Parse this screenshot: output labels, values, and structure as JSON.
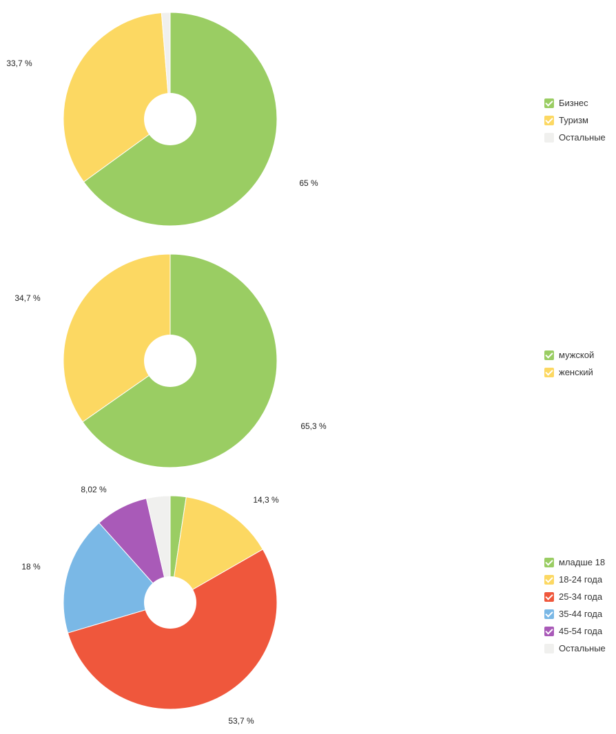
{
  "chart_data": [
    {
      "type": "pie",
      "categories": [
        "Бизнес",
        "Туризм",
        "Остальные"
      ],
      "values": [
        65,
        33.7,
        1.3
      ],
      "colors": [
        "#9ACD63",
        "#FCD862",
        "#F0F0EE"
      ],
      "legend_checked": [
        true,
        true,
        false
      ],
      "data_labels": [
        {
          "text": "65 %",
          "slice": 0
        },
        {
          "text": "33,7 %",
          "slice": 1
        }
      ],
      "legend_position": "right",
      "donut": true
    },
    {
      "type": "pie",
      "categories": [
        "мужской",
        "женский"
      ],
      "values": [
        65.3,
        34.7
      ],
      "colors": [
        "#9ACD63",
        "#FCD862"
      ],
      "legend_checked": [
        true,
        true
      ],
      "data_labels": [
        {
          "text": "65,3 %",
          "slice": 0
        },
        {
          "text": "34,7 %",
          "slice": 1
        }
      ],
      "legend_position": "right",
      "donut": true
    },
    {
      "type": "pie",
      "categories": [
        "младше 18",
        "18-24 года",
        "25-34 года",
        "35-44 года",
        "45-54 года",
        "Остальные"
      ],
      "values": [
        2.4,
        14.3,
        53.7,
        18,
        8.02,
        3.58
      ],
      "colors": [
        "#9ACD63",
        "#FCD862",
        "#EF573C",
        "#7AB8E6",
        "#A95AB8",
        "#F0F0EE"
      ],
      "legend_checked": [
        true,
        true,
        true,
        true,
        true,
        false
      ],
      "data_labels": [
        {
          "text": "14,3 %",
          "slice": 1
        },
        {
          "text": "53,7 %",
          "slice": 2
        },
        {
          "text": "18 %",
          "slice": 3
        },
        {
          "text": "8,02 %",
          "slice": 4
        }
      ],
      "legend_position": "right",
      "donut": true
    }
  ]
}
